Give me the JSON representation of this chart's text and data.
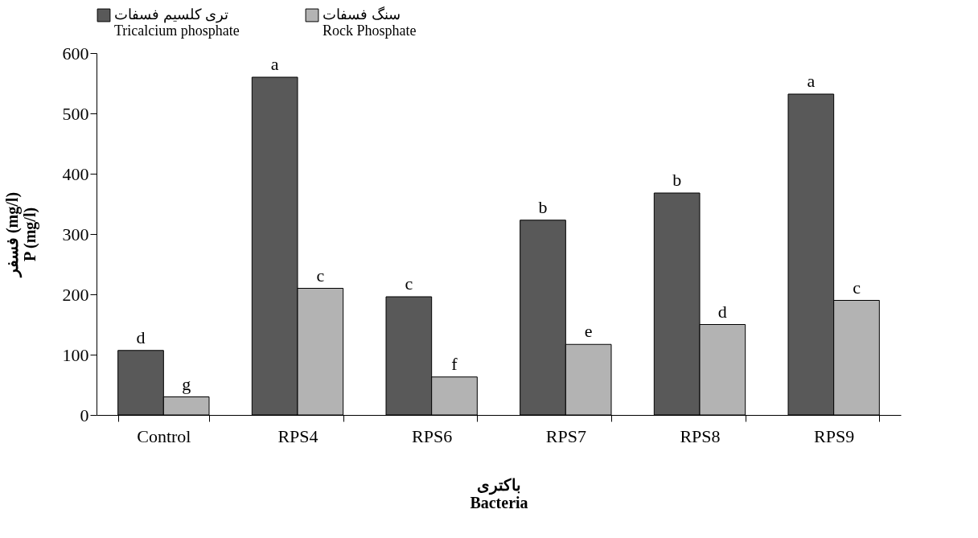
{
  "chart_data": {
    "type": "bar",
    "xlabel": "باکتری\nBacteria",
    "ylabel": "فسفر (mg/l)\nP (mg/l)",
    "categories": [
      "Control",
      "RPS4",
      "RPS6",
      "RPS7",
      "RPS8",
      "RPS9"
    ],
    "series": [
      {
        "name": "تری کلسیم فسفات\nTricalcium phosphate",
        "color": "#595959",
        "values": [
          107,
          560,
          196,
          323,
          368,
          532
        ],
        "value_labels": [
          "d",
          "a",
          "c",
          "b",
          "b",
          "a"
        ]
      },
      {
        "name": "سنگ فسفات\nRock Phosphate",
        "color": "#b3b3b3",
        "values": [
          30,
          210,
          63,
          117,
          150,
          190
        ],
        "value_labels": [
          "g",
          "c",
          "f",
          "e",
          "d",
          "c"
        ]
      }
    ],
    "ylim": [
      0,
      600
    ],
    "yticks": [
      0,
      100,
      200,
      300,
      400,
      500,
      600
    ],
    "grid": false,
    "legend": "top"
  }
}
